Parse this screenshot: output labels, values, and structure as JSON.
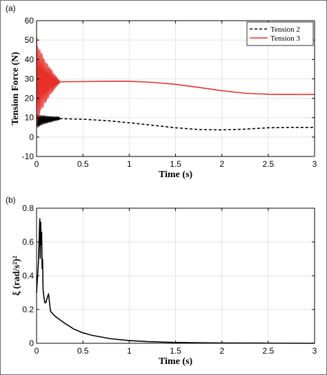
{
  "figure": {
    "panel_a_label": "(a)",
    "panel_b_label": "(b)"
  },
  "chart_data": [
    {
      "type": "line",
      "panel": "(a)",
      "xlabel": "Time (s)",
      "ylabel": "Tension Force (N)",
      "xlim": [
        0,
        3
      ],
      "ylim": [
        -10,
        60
      ],
      "xticks": [
        "0",
        "0.5",
        "1",
        "1.5",
        "2",
        "2.5",
        "3"
      ],
      "yticks": [
        "-10",
        "0",
        "10",
        "20",
        "30",
        "40",
        "50",
        "60"
      ],
      "grid": true,
      "legend_position": "top-right",
      "series": [
        {
          "name": "Tension 2",
          "style": "dashed",
          "color": "#000000",
          "x": [
            0.25,
            0.5,
            0.75,
            1.0,
            1.25,
            1.5,
            1.75,
            2.0,
            2.25,
            2.5,
            2.75,
            3.0
          ],
          "y": [
            9.5,
            9.2,
            8.5,
            7.4,
            6.1,
            4.8,
            3.9,
            3.7,
            4.1,
            4.8,
            5.0,
            5.0
          ],
          "oscillation": {
            "x_start": 0.0,
            "x_end": 0.25,
            "upper": [
              12,
              10.5
            ],
            "lower": [
              4,
              8.8
            ]
          }
        },
        {
          "name": "Tension 3",
          "style": "solid",
          "color": "#e8302a",
          "x": [
            0.25,
            0.5,
            0.75,
            1.0,
            1.25,
            1.5,
            1.75,
            2.0,
            2.25,
            2.5,
            2.75,
            3.0
          ],
          "y": [
            28.5,
            28.6,
            28.8,
            28.8,
            28.2,
            27.2,
            25.6,
            23.9,
            22.6,
            22.1,
            22.0,
            22.0
          ],
          "oscillation": {
            "x_start": 0.0,
            "x_end": 0.25,
            "upper": [
              54,
              29.2
            ],
            "lower": [
              3,
              27.8
            ]
          }
        }
      ]
    },
    {
      "type": "line",
      "panel": "(b)",
      "xlabel": "Time (s)",
      "ylabel": "ξ (rad/s²)²",
      "xlim": [
        0,
        3
      ],
      "ylim": [
        0,
        0.8
      ],
      "xticks": [
        "0",
        "0.5",
        "1",
        "1.5",
        "2",
        "2.5",
        "3"
      ],
      "yticks": [
        "0",
        "0.2",
        "0.4",
        "0.6",
        "0.8"
      ],
      "grid": true,
      "series": [
        {
          "color": "#000000",
          "style": "solid",
          "x": [
            0.0,
            0.02,
            0.035,
            0.04,
            0.045,
            0.05,
            0.055,
            0.06,
            0.065,
            0.07,
            0.08,
            0.09,
            0.1,
            0.11,
            0.12,
            0.13,
            0.14,
            0.15,
            0.2,
            0.3,
            0.4,
            0.5,
            0.6,
            0.8,
            1.0,
            1.2,
            1.5,
            1.8,
            2.0,
            2.5,
            3.0
          ],
          "y": [
            0.3,
            0.48,
            0.74,
            0.5,
            0.72,
            0.58,
            0.66,
            0.44,
            0.5,
            0.32,
            0.27,
            0.24,
            0.24,
            0.26,
            0.28,
            0.29,
            0.24,
            0.19,
            0.16,
            0.12,
            0.085,
            0.062,
            0.047,
            0.027,
            0.016,
            0.01,
            0.005,
            0.003,
            0.002,
            0.001,
            0.0
          ]
        }
      ]
    }
  ]
}
